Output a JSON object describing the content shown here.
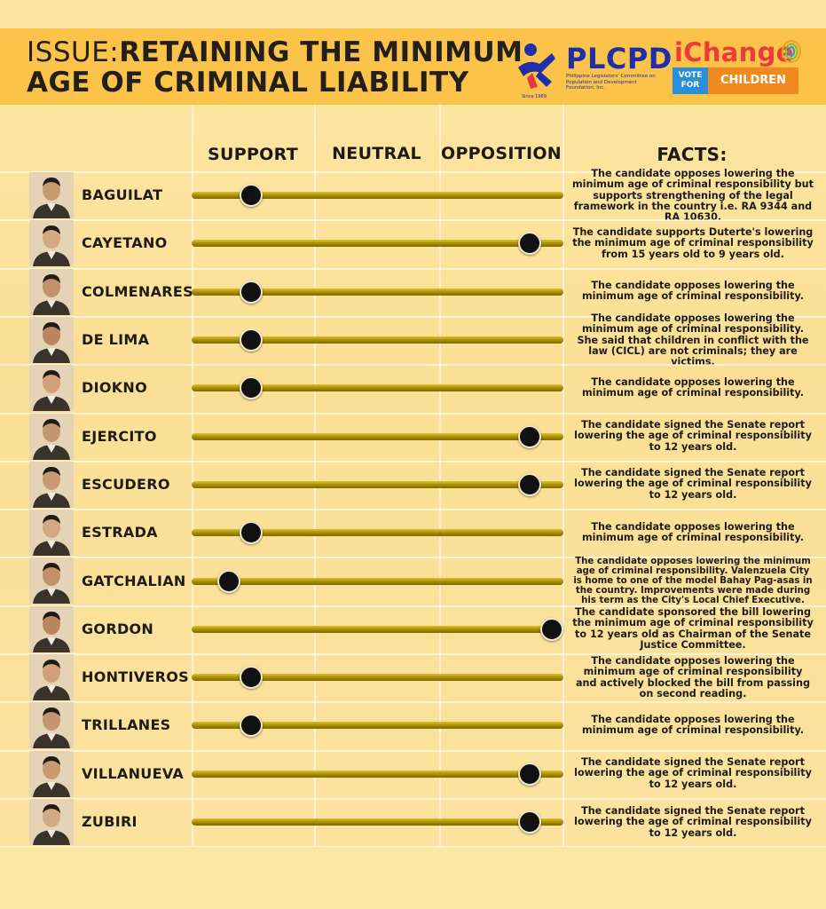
{
  "header": {
    "issue_label": "ISSUE:",
    "title_line1": "RETAINING THE MINIMUM",
    "title_line2": "AGE OF CRIMINAL LIABILITY",
    "plcpd_name": "PLCPD",
    "plcpd_full": "Philippine Legislators' Committee on Population and Development Foundation, Inc.",
    "plcpd_since": "Since 1989",
    "ichange_word": "iChange",
    "ichange_vote": "VOTE FOR",
    "ichange_children": "CHILDREN"
  },
  "colors": {
    "header_bg": "#fbc349",
    "page_bg": "#fde8a6",
    "track": "#b39512",
    "knob": "#111111",
    "plcpd_blue": "#1e2fa8",
    "ichange_red": "#ec3b3b"
  },
  "chart_data": {
    "type": "position-scale",
    "columns": [
      "SUPPORT",
      "NEUTRAL",
      "OPPOSITION",
      "FACTS:"
    ],
    "scale_note": "0 = left end of track, 1 = right end of track",
    "rows": [
      {
        "name": "BAGUILAT",
        "position": 0.16,
        "fact": "The candidate opposes lowering the minimum age of criminal responsibility but supports strengthening of the legal framework in the country i.e. RA 9344 and RA 10630."
      },
      {
        "name": "CAYETANO",
        "position": 0.91,
        "fact": "The candidate supports Duterte's lowering the minimum age of criminal responsibility from 15 years old to 9 years old."
      },
      {
        "name": "COLMENARES",
        "position": 0.16,
        "fact": "The candidate opposes lowering the minimum age of criminal responsibility."
      },
      {
        "name": "DE LIMA",
        "position": 0.16,
        "fact": "The candidate opposes lowering the minimum age of criminal responsibility. She said that children in conflict with the law (CICL) are not criminals; they are victims."
      },
      {
        "name": "DIOKNO",
        "position": 0.16,
        "fact": "The candidate opposes lowering the minimum age of criminal responsibility."
      },
      {
        "name": "EJERCITO",
        "position": 0.91,
        "fact": "The candidate signed the Senate report lowering the age of criminal responsibility to 12 years old."
      },
      {
        "name": "ESCUDERO",
        "position": 0.91,
        "fact": "The candidate signed the Senate report lowering the age of criminal responsibility to 12 years old."
      },
      {
        "name": "ESTRADA",
        "position": 0.16,
        "fact": "The candidate opposes lowering the minimum age of criminal responsibility."
      },
      {
        "name": "GATCHALIAN",
        "position": 0.1,
        "fact": "The candidate opposes lowering the minimum age of criminal responsibility. Valenzuela City is home to one of the model Bahay Pag-asas in the country. Improvements were made during his term as the City's Local Chief Executive."
      },
      {
        "name": "GORDON",
        "position": 0.97,
        "fact": "The candidate sponsored the bill lowering the minimum age of criminal responsibility to 12 years old as Chairman of the Senate Justice Committee."
      },
      {
        "name": "HONTIVEROS",
        "position": 0.16,
        "fact": "The candidate opposes lowering the minimum age of criminal responsibility and actively blocked the bill from passing on second reading."
      },
      {
        "name": "TRILLANES",
        "position": 0.16,
        "fact": "The candidate opposes lowering the minimum age of criminal responsibility."
      },
      {
        "name": "VILLANUEVA",
        "position": 0.91,
        "fact": "The candidate signed the Senate report lowering the age of criminal responsibility to 12 years old."
      },
      {
        "name": "ZUBIRI",
        "position": 0.91,
        "fact": "The candidate signed the Senate report lowering the age of criminal responsibility to 12 years old."
      }
    ]
  }
}
